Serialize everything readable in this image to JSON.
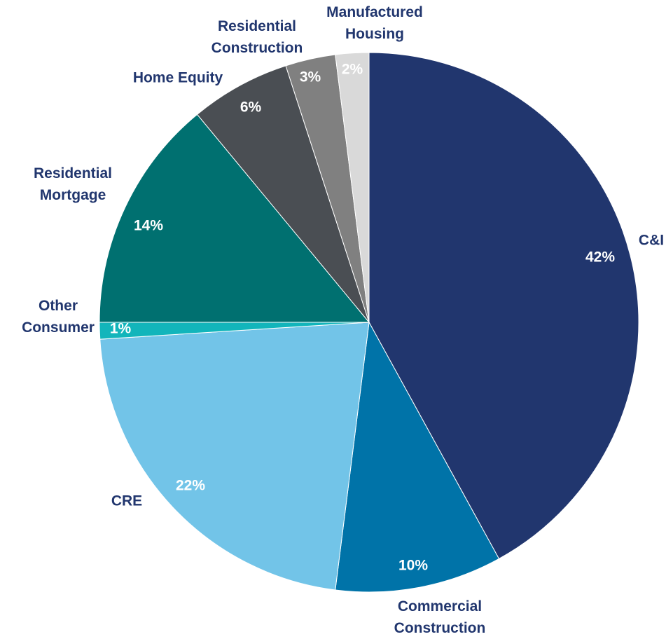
{
  "chart_data": {
    "type": "pie",
    "categories": [
      "C&I",
      "Commercial Construction",
      "CRE",
      "Other Consumer",
      "Residential Mortgage",
      "Home Equity",
      "Residential Construction",
      "Manufactured Housing"
    ],
    "values": [
      42,
      10,
      22,
      1,
      14,
      6,
      3,
      2
    ],
    "value_labels": [
      "42%",
      "10%",
      "22%",
      "1%",
      "14%",
      "6%",
      "3%",
      "2%"
    ],
    "colors": [
      "#21366e",
      "#0073a8",
      "#72c4e8",
      "#12b5bb",
      "#007070",
      "#4a4e53",
      "#808080",
      "#d9d9d9"
    ]
  }
}
